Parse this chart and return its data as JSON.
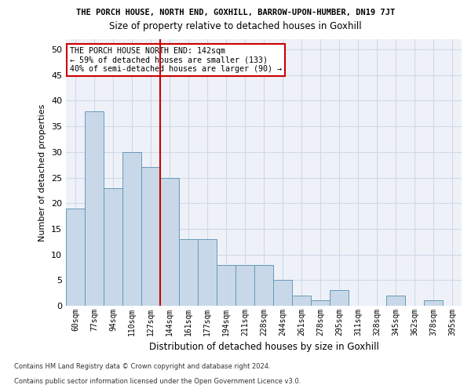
{
  "title_line1": "THE PORCH HOUSE, NORTH END, GOXHILL, BARROW-UPON-HUMBER, DN19 7JT",
  "title_line2": "Size of property relative to detached houses in Goxhill",
  "xlabel": "Distribution of detached houses by size in Goxhill",
  "ylabel": "Number of detached properties",
  "categories": [
    "60sqm",
    "77sqm",
    "94sqm",
    "110sqm",
    "127sqm",
    "144sqm",
    "161sqm",
    "177sqm",
    "194sqm",
    "211sqm",
    "228sqm",
    "244sqm",
    "261sqm",
    "278sqm",
    "295sqm",
    "311sqm",
    "328sqm",
    "345sqm",
    "362sqm",
    "378sqm",
    "395sqm"
  ],
  "values": [
    19,
    38,
    23,
    30,
    27,
    25,
    13,
    13,
    8,
    8,
    8,
    5,
    2,
    1,
    3,
    0,
    0,
    2,
    0,
    1,
    0
  ],
  "bar_color": "#c8d8e8",
  "bar_edge_color": "#6699bb",
  "annotation_title": "THE PORCH HOUSE NORTH END: 142sqm",
  "annotation_line2": "← 59% of detached houses are smaller (133)",
  "annotation_line3": "40% of semi-detached houses are larger (90) →",
  "annotation_box_color": "#ffffff",
  "annotation_box_edge": "#cc0000",
  "vline_color": "#cc0000",
  "ylim": [
    0,
    52
  ],
  "yticks": [
    0,
    5,
    10,
    15,
    20,
    25,
    30,
    35,
    40,
    45,
    50
  ],
  "grid_color": "#d0d8e8",
  "background_color": "#eef2f8",
  "footer_line1": "Contains HM Land Registry data © Crown copyright and database right 2024.",
  "footer_line2": "Contains public sector information licensed under the Open Government Licence v3.0."
}
